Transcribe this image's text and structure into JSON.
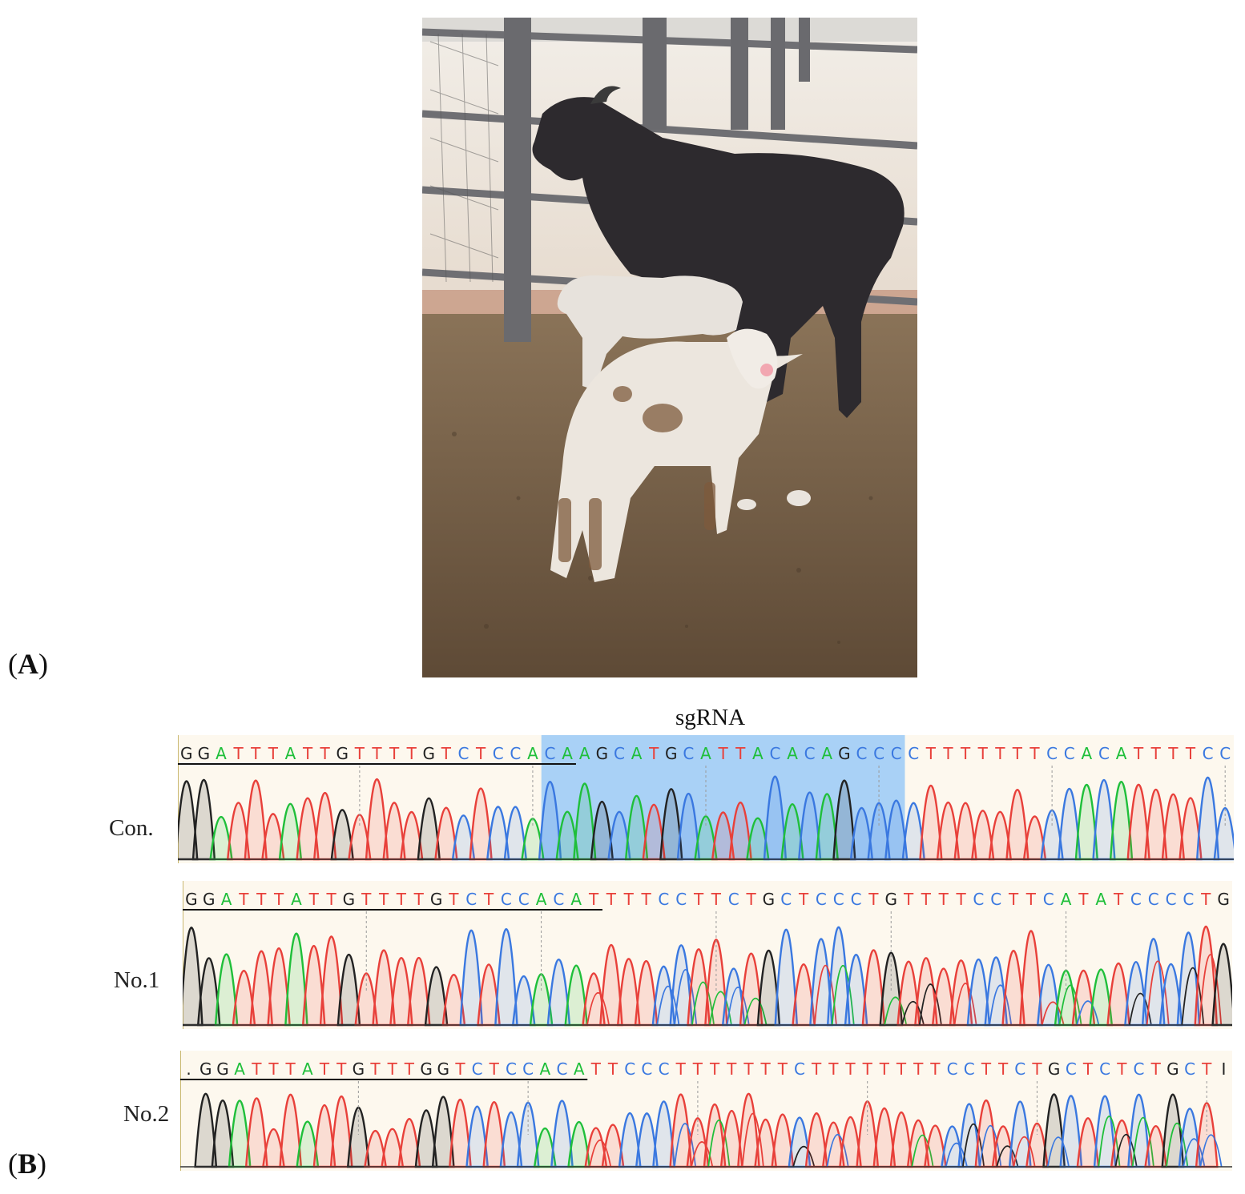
{
  "figure": {
    "panel_a_label": {
      "open": "(",
      "letter": "A",
      "close": ")"
    },
    "panel_b_label": {
      "open": "(",
      "letter": "B",
      "close": ")"
    },
    "sgrna_label": "sgRNA"
  },
  "colors": {
    "A": "#1fbf3a",
    "C": "#3a78e0",
    "G": "#222222",
    "T": "#e8403a",
    "background": "#fdf8ee",
    "sgrna_highlight": "#a9d1f6",
    "marker_line": "#111111"
  },
  "photo": {
    "description_icon": "photo-sheep-and-lambs"
  },
  "chromatograms": [
    {
      "label": "Con.",
      "sequence": "GGATTTATTGTTTTGTCTCCACAAGCATGCATTACACAGCCCCTTTTTTTCCACATTTTCC",
      "sgrna_range": [
        21,
        41
      ],
      "underline_range": [
        0,
        22
      ]
    },
    {
      "label": "No.1",
      "sequence": "GGATTTATTGTTTTGTCTCCACATTTTCCTTCTGCTCCCTGTTTTCCTTCATATCCCCTG",
      "underline_range": [
        0,
        23
      ]
    },
    {
      "label": "No.2",
      "sequence": ".GGATTTATTGTTTGGTCTCCACATTCCCTTTTTTTCTTTTTTTTCCTTCTGCTCTCTGCTI",
      "underline_range": [
        0,
        23
      ]
    }
  ]
}
